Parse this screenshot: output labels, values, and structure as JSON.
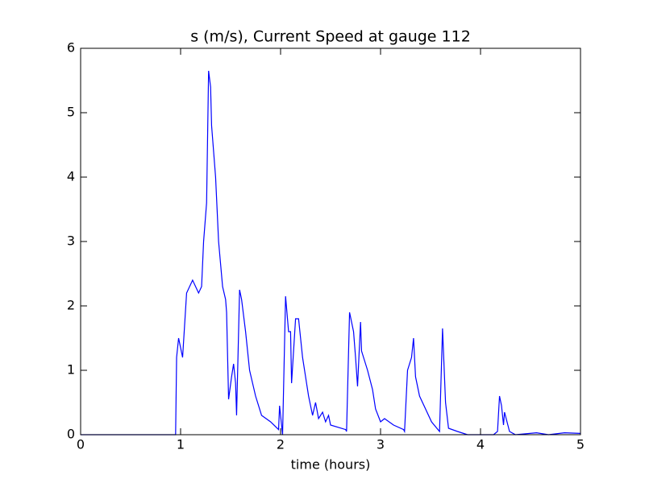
{
  "chart_data": {
    "type": "line",
    "title": "s (m/s), Current Speed at gauge 112",
    "xlabel": "time (hours)",
    "xlim": [
      0,
      5
    ],
    "ylim": [
      0,
      6
    ],
    "xticks": [
      0,
      1,
      2,
      3,
      4,
      5
    ],
    "yticks": [
      0,
      1,
      2,
      3,
      4,
      5,
      6
    ],
    "series": [
      {
        "color": "#0000ff",
        "x": [
          0,
          0.95,
          0.96,
          0.98,
          1.02,
          1.06,
          1.12,
          1.18,
          1.21,
          1.23,
          1.26,
          1.28,
          1.3,
          1.31,
          1.35,
          1.38,
          1.42,
          1.45,
          1.46,
          1.48,
          1.51,
          1.53,
          1.55,
          1.56,
          1.59,
          1.61,
          1.65,
          1.69,
          1.75,
          1.81,
          1.9,
          1.98,
          1.99,
          2.02,
          2.05,
          2.08,
          2.1,
          2.11,
          2.15,
          2.18,
          2.22,
          2.28,
          2.32,
          2.35,
          2.38,
          2.42,
          2.45,
          2.48,
          2.5,
          2.65,
          2.66,
          2.69,
          2.73,
          2.75,
          2.77,
          2.8,
          2.81,
          2.85,
          2.87,
          2.92,
          2.95,
          3.0,
          3.04,
          3.13,
          3.23,
          3.24,
          3.27,
          3.31,
          3.33,
          3.35,
          3.39,
          3.51,
          3.59,
          3.62,
          3.65,
          3.68,
          3.77,
          3.87,
          4.13,
          4.17,
          4.19,
          4.21,
          4.23,
          4.24,
          4.29,
          4.35,
          4.56,
          4.68,
          4.84,
          5
        ],
        "values": [
          0,
          0,
          1.2,
          1.5,
          1.2,
          2.2,
          2.4,
          2.2,
          2.3,
          3.0,
          3.6,
          5.65,
          5.4,
          4.8,
          4.0,
          3.0,
          2.3,
          2.1,
          1.9,
          0.55,
          0.9,
          1.1,
          0.8,
          0.3,
          2.25,
          2.1,
          1.6,
          1.0,
          0.6,
          0.3,
          0.2,
          0.08,
          0.45,
          0,
          2.15,
          1.6,
          1.6,
          0.8,
          1.8,
          1.8,
          1.2,
          0.6,
          0.3,
          0.5,
          0.25,
          0.35,
          0.2,
          0.3,
          0.15,
          0.08,
          0.05,
          1.9,
          1.6,
          1.2,
          0.75,
          1.75,
          1.3,
          1.1,
          1.0,
          0.7,
          0.4,
          0.2,
          0.25,
          0.15,
          0.08,
          0.05,
          1.0,
          1.2,
          1.5,
          0.9,
          0.6,
          0.2,
          0.05,
          1.65,
          0.5,
          0.1,
          0.05,
          0,
          0,
          0.05,
          0.6,
          0.45,
          0.15,
          0.35,
          0.05,
          0,
          0.03,
          0,
          0.03,
          0.02
        ]
      }
    ]
  }
}
